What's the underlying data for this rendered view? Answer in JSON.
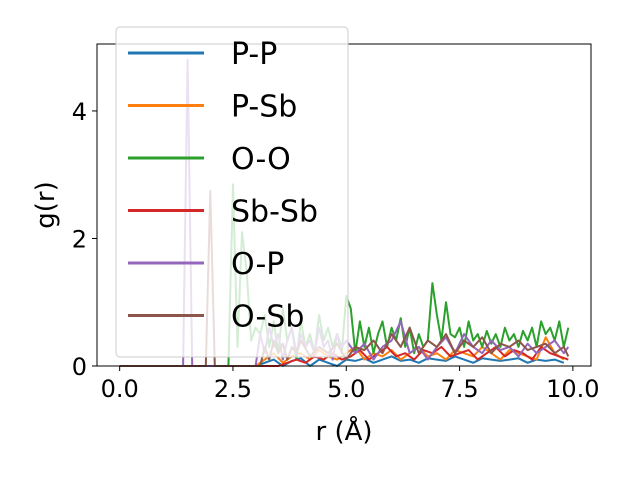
{
  "chart_data": {
    "type": "line",
    "title": "",
    "xlabel": "r (Å)",
    "ylabel": "g(r)",
    "xlim": [
      -0.5,
      10.4
    ],
    "ylim": [
      0,
      5.05
    ],
    "xticks": [
      0.0,
      2.5,
      5.0,
      7.5,
      10.0
    ],
    "xtick_labels": [
      "0.0",
      "2.5",
      "5.0",
      "7.5",
      "10.0"
    ],
    "yticks": [
      0,
      2,
      4
    ],
    "ytick_labels": [
      "0",
      "2",
      "4"
    ],
    "grid": false,
    "legend_position": "upper-left",
    "series": [
      {
        "name": "P-P",
        "color": "#1f77b4",
        "x": [
          0,
          3.0,
          3.2,
          3.4,
          3.6,
          3.8,
          4.0,
          4.2,
          4.4,
          4.6,
          4.8,
          5.0,
          5.2,
          5.4,
          5.6,
          5.8,
          6.0,
          6.2,
          6.4,
          6.6,
          6.8,
          7.0,
          7.2,
          7.4,
          7.6,
          7.8,
          8.0,
          8.2,
          8.4,
          8.6,
          8.8,
          9.0,
          9.2,
          9.4,
          9.6,
          9.8
        ],
        "y": [
          0,
          0,
          0.05,
          0.1,
          0,
          0.08,
          0.12,
          0,
          0.1,
          0.05,
          0,
          0.1,
          0.08,
          0.12,
          0.05,
          0.1,
          0.15,
          0.08,
          0.1,
          0.05,
          0.12,
          0.1,
          0.08,
          0.15,
          0.1,
          0.05,
          0.12,
          0.1,
          0.08,
          0.1,
          0.12,
          0.05,
          0.1,
          0.08,
          0.1,
          0.05
        ]
      },
      {
        "name": "P-Sb",
        "color": "#ff7f0e",
        "x": [
          0,
          3.0,
          3.2,
          3.4,
          3.6,
          3.8,
          4.0,
          4.2,
          4.4,
          4.6,
          4.8,
          5.0,
          5.2,
          5.4,
          5.6,
          5.8,
          6.0,
          6.2,
          6.4,
          6.6,
          6.8,
          7.0,
          7.2,
          7.4,
          7.6,
          7.8,
          8.0,
          8.2,
          8.4,
          8.6,
          8.8,
          9.0,
          9.2,
          9.4,
          9.6,
          9.8
        ],
        "y": [
          0,
          0,
          0.1,
          0.2,
          0.05,
          0.15,
          0.2,
          0.1,
          0.25,
          0.15,
          0.1,
          0.2,
          0.3,
          0.1,
          0.2,
          0.15,
          0.25,
          0.1,
          0.2,
          0.3,
          0.15,
          0.2,
          0.1,
          0.25,
          0.2,
          0.15,
          0.3,
          0.2,
          0.1,
          0.25,
          0.2,
          0.15,
          0.1,
          0.45,
          0.2,
          0.1
        ]
      },
      {
        "name": "O-O",
        "color": "#2ca02c",
        "x": [
          0,
          2.4,
          2.5,
          2.6,
          2.7,
          2.8,
          2.9,
          3.0,
          3.1,
          3.2,
          3.3,
          3.4,
          3.5,
          3.6,
          3.7,
          3.8,
          3.9,
          4.0,
          4.1,
          4.2,
          4.3,
          4.4,
          4.5,
          4.6,
          4.7,
          4.8,
          4.9,
          5.0,
          5.1,
          5.2,
          5.3,
          5.4,
          5.5,
          5.6,
          5.7,
          5.8,
          5.9,
          6.0,
          6.1,
          6.2,
          6.3,
          6.4,
          6.5,
          6.6,
          6.7,
          6.8,
          6.9,
          7.0,
          7.1,
          7.2,
          7.3,
          7.4,
          7.5,
          7.6,
          7.7,
          7.8,
          7.9,
          8.0,
          8.1,
          8.2,
          8.3,
          8.4,
          8.5,
          8.6,
          8.7,
          8.8,
          8.9,
          9.0,
          9.1,
          9.2,
          9.3,
          9.4,
          9.5,
          9.6,
          9.7,
          9.8,
          9.9
        ],
        "y": [
          0,
          0,
          2.85,
          0.3,
          2.1,
          1.5,
          0.4,
          0.6,
          0.5,
          0.8,
          0.3,
          0.7,
          0.2,
          0.9,
          0.4,
          0.6,
          0.1,
          0.7,
          0.3,
          0.5,
          0.2,
          0.8,
          0.4,
          0.6,
          0.3,
          0.5,
          0.2,
          1.1,
          0.9,
          0.2,
          0.7,
          0.3,
          0.6,
          0.2,
          0.5,
          0.7,
          0.3,
          0.6,
          0.4,
          0.75,
          0.3,
          0.6,
          0.2,
          0.5,
          0.3,
          0.4,
          1.3,
          0.8,
          0.4,
          1.0,
          0.5,
          0.45,
          0.6,
          0.3,
          0.7,
          0.4,
          0.5,
          0.3,
          0.55,
          0.35,
          0.5,
          0.3,
          0.6,
          0.4,
          0.5,
          0.3,
          0.55,
          0.4,
          0.6,
          0.3,
          0.7,
          0.5,
          0.6,
          0.4,
          0.7,
          0.3,
          0.6
        ]
      },
      {
        "name": "Sb-Sb",
        "color": "#d62728",
        "x": [
          0,
          3.5,
          3.7,
          3.9,
          4.1,
          4.3,
          4.5,
          4.7,
          4.9,
          5.1,
          5.3,
          5.5,
          5.7,
          5.9,
          6.1,
          6.3,
          6.5,
          6.7,
          6.9,
          7.1,
          7.3,
          7.5,
          7.7,
          7.9,
          8.1,
          8.3,
          8.5,
          8.7,
          8.9,
          9.1,
          9.3,
          9.5,
          9.7,
          9.9
        ],
        "y": [
          0,
          0,
          0.05,
          0.1,
          0.05,
          0.15,
          0.1,
          0.2,
          0.1,
          0.15,
          0.25,
          0.1,
          0.2,
          0.3,
          0.15,
          0.2,
          0.1,
          0.25,
          0.2,
          0.3,
          0.15,
          0.2,
          0.25,
          0.1,
          0.2,
          0.3,
          0.15,
          0.25,
          0.2,
          0.1,
          0.3,
          0.2,
          0.15,
          0.1
        ]
      },
      {
        "name": "O-P",
        "color": "#9467bd",
        "x": [
          0,
          1.4,
          1.5,
          1.6,
          3.0,
          3.1,
          3.2,
          3.3,
          3.4,
          3.5,
          3.6,
          3.7,
          3.8,
          3.9,
          4.0,
          4.1,
          4.2,
          4.3,
          4.4,
          4.5,
          4.6,
          4.7,
          4.8,
          4.9,
          5.0,
          5.2,
          5.4,
          5.6,
          5.8,
          6.0,
          6.2,
          6.4,
          6.6,
          6.8,
          7.0,
          7.2,
          7.4,
          7.6,
          7.8,
          8.0,
          8.2,
          8.4,
          8.6,
          8.8,
          9.0,
          9.2,
          9.4,
          9.6,
          9.8,
          9.9
        ],
        "y": [
          0,
          0,
          4.8,
          0,
          0,
          0.5,
          0.2,
          0.6,
          0.3,
          0.5,
          0.1,
          0.4,
          0.6,
          0.2,
          0.5,
          0.3,
          0.4,
          0.2,
          0.6,
          0.3,
          0.4,
          0.1,
          0.5,
          0.3,
          0.4,
          0.2,
          0.35,
          0.1,
          0.3,
          0.4,
          0.7,
          0.2,
          0.3,
          0.1,
          0.3,
          0.45,
          0.2,
          0.5,
          0.3,
          0.2,
          0.4,
          0.25,
          0.3,
          0.15,
          0.35,
          0.2,
          0.3,
          0.4,
          0.2,
          0.3
        ]
      },
      {
        "name": "O-Sb",
        "color": "#8c564b",
        "x": [
          0,
          1.9,
          2.0,
          2.1,
          3.1,
          3.2,
          3.3,
          3.4,
          3.5,
          3.6,
          3.7,
          3.8,
          3.9,
          4.0,
          4.2,
          4.4,
          4.6,
          4.8,
          5.0,
          5.2,
          5.4,
          5.6,
          5.8,
          6.0,
          6.2,
          6.4,
          6.6,
          6.8,
          7.0,
          7.2,
          7.4,
          7.6,
          7.8,
          8.0,
          8.2,
          8.4,
          8.6,
          8.8,
          9.0,
          9.2,
          9.4,
          9.6,
          9.8,
          9.9
        ],
        "y": [
          0,
          0,
          2.75,
          0,
          0,
          0.3,
          0.1,
          0.4,
          0.2,
          0.35,
          0.1,
          0.3,
          0.2,
          0.4,
          0.15,
          0.3,
          0.2,
          0.35,
          0.1,
          0.3,
          0.25,
          0.4,
          0.2,
          0.5,
          0.3,
          0.6,
          0.2,
          0.4,
          0.3,
          0.5,
          0.2,
          0.4,
          0.3,
          0.45,
          0.2,
          0.35,
          0.3,
          0.4,
          0.25,
          0.3,
          0.35,
          0.2,
          0.3,
          0.15
        ]
      }
    ]
  }
}
